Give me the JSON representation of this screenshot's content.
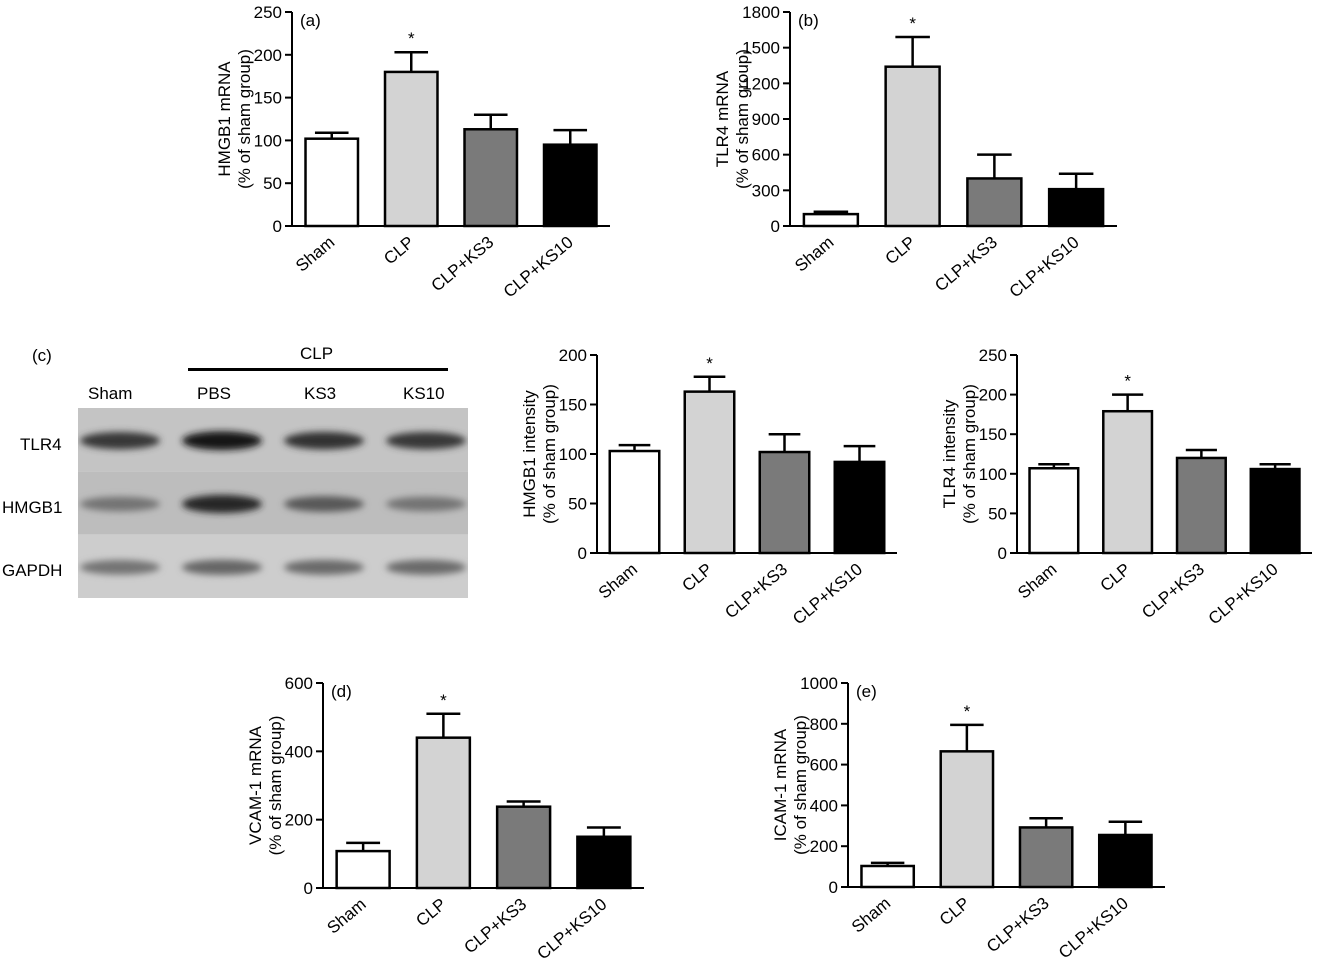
{
  "chart_data": [
    {
      "id": "a",
      "type": "bar",
      "panel_label": "(a)",
      "categories": [
        "Sham",
        "CLP",
        "CLP+KS3",
        "CLP+KS10"
      ],
      "values": [
        102,
        180,
        113,
        95
      ],
      "errors": [
        7,
        23,
        17,
        17
      ],
      "significance": [
        "",
        "*",
        "",
        ""
      ],
      "ylabel": "HMGB1 mRNA",
      "ylabel2": "(% of sham group)",
      "ylim": [
        0,
        250
      ],
      "yticks": [
        0,
        50,
        100,
        150,
        200,
        250
      ],
      "colors": [
        "#ffffff",
        "#d3d3d3",
        "#7a7a7a",
        "#000000"
      ]
    },
    {
      "id": "b",
      "type": "bar",
      "panel_label": "(b)",
      "categories": [
        "Sham",
        "CLP",
        "CLP+KS3",
        "CLP+KS10"
      ],
      "values": [
        100,
        1340,
        400,
        310
      ],
      "errors": [
        20,
        250,
        200,
        130
      ],
      "significance": [
        "",
        "*",
        "",
        ""
      ],
      "ylabel": "TLR4 mRNA",
      "ylabel2": "(% of sham group)",
      "ylim": [
        0,
        1800
      ],
      "yticks": [
        0,
        300,
        600,
        900,
        1200,
        1500,
        1800
      ],
      "colors": [
        "#ffffff",
        "#d3d3d3",
        "#7a7a7a",
        "#000000"
      ]
    },
    {
      "id": "c1",
      "type": "bar",
      "panel_label": "",
      "categories": [
        "Sham",
        "CLP",
        "CLP+KS3",
        "CLP+KS10"
      ],
      "values": [
        103,
        163,
        102,
        92
      ],
      "errors": [
        6,
        15,
        18,
        16
      ],
      "significance": [
        "",
        "*",
        "",
        ""
      ],
      "ylabel": "HMGB1 intensity",
      "ylabel2": "(% of sham group)",
      "ylim": [
        0,
        200
      ],
      "yticks": [
        0,
        50,
        100,
        150,
        200
      ],
      "colors": [
        "#ffffff",
        "#d3d3d3",
        "#7a7a7a",
        "#000000"
      ]
    },
    {
      "id": "c2",
      "type": "bar",
      "panel_label": "",
      "categories": [
        "Sham",
        "CLP",
        "CLP+KS3",
        "CLP+KS10"
      ],
      "values": [
        107,
        179,
        120,
        106
      ],
      "errors": [
        5,
        21,
        10,
        6
      ],
      "significance": [
        "",
        "*",
        "",
        ""
      ],
      "ylabel": "TLR4 intensity",
      "ylabel2": "(% of sham group)",
      "ylim": [
        0,
        250
      ],
      "yticks": [
        0,
        50,
        100,
        150,
        200,
        250
      ],
      "colors": [
        "#ffffff",
        "#d3d3d3",
        "#7a7a7a",
        "#000000"
      ]
    },
    {
      "id": "d",
      "type": "bar",
      "panel_label": "(d)",
      "categories": [
        "Sham",
        "CLP",
        "CLP+KS3",
        "CLP+KS10"
      ],
      "values": [
        108,
        440,
        238,
        150
      ],
      "errors": [
        24,
        70,
        15,
        27
      ],
      "significance": [
        "",
        "*",
        "",
        ""
      ],
      "ylabel": "VCAM-1 mRNA",
      "ylabel2": "(% of sham group)",
      "ylim": [
        0,
        600
      ],
      "yticks": [
        0,
        200,
        400,
        600
      ],
      "colors": [
        "#ffffff",
        "#d3d3d3",
        "#7a7a7a",
        "#000000"
      ]
    },
    {
      "id": "e",
      "type": "bar",
      "panel_label": "(e)",
      "categories": [
        "Sham",
        "CLP",
        "CLP+KS3",
        "CLP+KS10"
      ],
      "values": [
        103,
        665,
        292,
        255
      ],
      "errors": [
        15,
        130,
        45,
        65
      ],
      "significance": [
        "",
        "*",
        "",
        ""
      ],
      "ylabel": "ICAM-1 mRNA",
      "ylabel2": "(% of sham group)",
      "ylim": [
        0,
        1000
      ],
      "yticks": [
        0,
        200,
        400,
        600,
        800,
        1000
      ],
      "colors": [
        "#ffffff",
        "#d3d3d3",
        "#7a7a7a",
        "#000000"
      ]
    }
  ],
  "western_blot": {
    "panel_label": "(c)",
    "group_label": "CLP",
    "lanes": [
      "Sham",
      "PBS",
      "KS3",
      "KS10"
    ],
    "rows": [
      {
        "name": "TLR4",
        "intensity": [
          0.78,
          0.9,
          0.8,
          0.78
        ]
      },
      {
        "name": "HMGB1",
        "intensity": [
          0.55,
          0.85,
          0.65,
          0.55
        ]
      },
      {
        "name": "GAPDH",
        "intensity": [
          0.55,
          0.6,
          0.58,
          0.58
        ]
      }
    ]
  }
}
